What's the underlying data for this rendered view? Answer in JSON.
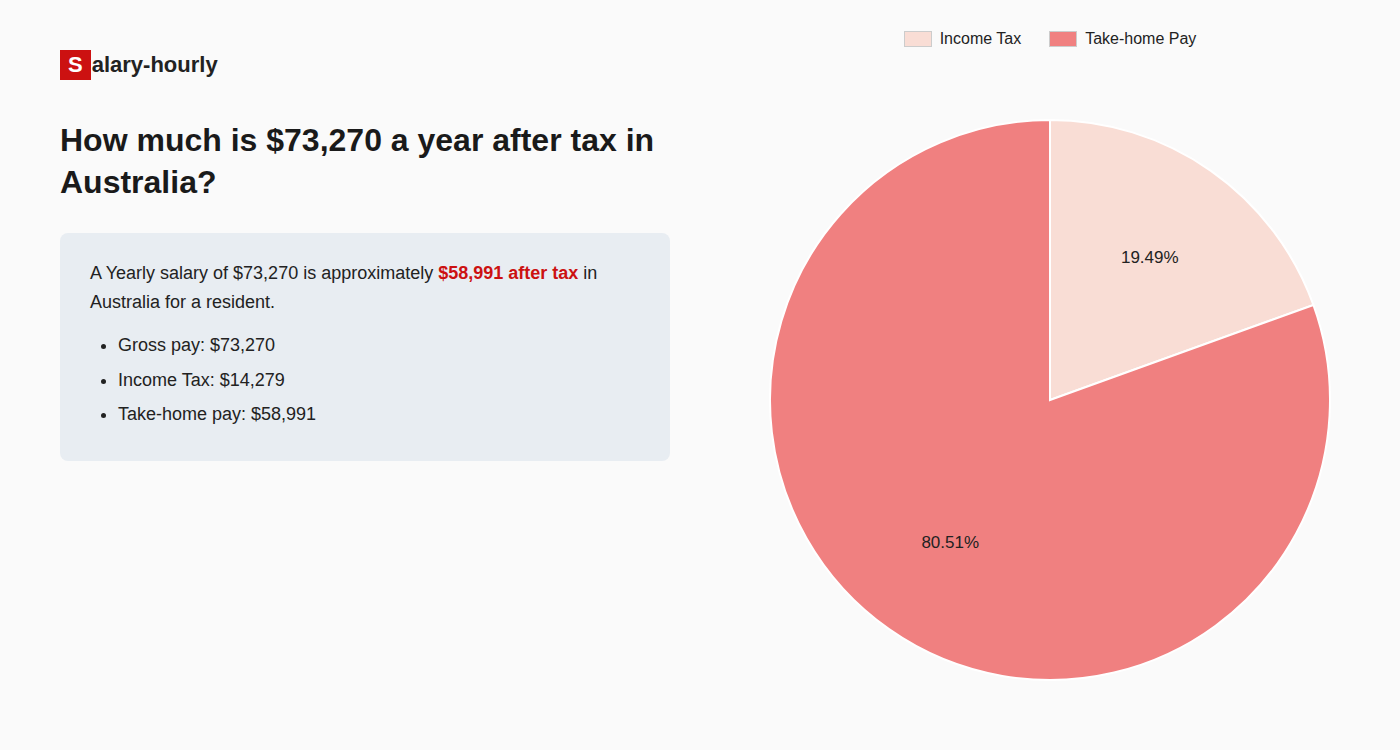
{
  "chart_data": {
    "type": "pie",
    "title": "How much is $73,270 a year after tax in Australia?",
    "categories": [
      "Income Tax",
      "Take-home Pay"
    ],
    "values": [
      19.49,
      80.51
    ],
    "value_labels": [
      "19.49%",
      "80.51%"
    ],
    "colors": [
      "#f9ddd5",
      "#f08080"
    ],
    "data_labels": true,
    "legend": "top",
    "annotations": [
      {
        "text": "S",
        "color": "#cc1111"
      },
      {
        "text": "alary-hourly"
      },
      {
        "text": "A Yearly salary of $73,270 is approximately "
      },
      {
        "text": "$58,991 after tax",
        "color": "#cc1111"
      },
      {
        "text": " in"
      },
      {
        "text": "Australia for a resident."
      },
      {
        "text": "Gross pay: $73,270"
      },
      {
        "text": "Income Tax: $14,279"
      },
      {
        "text": "Take-home pay: $58,991"
      }
    ]
  }
}
